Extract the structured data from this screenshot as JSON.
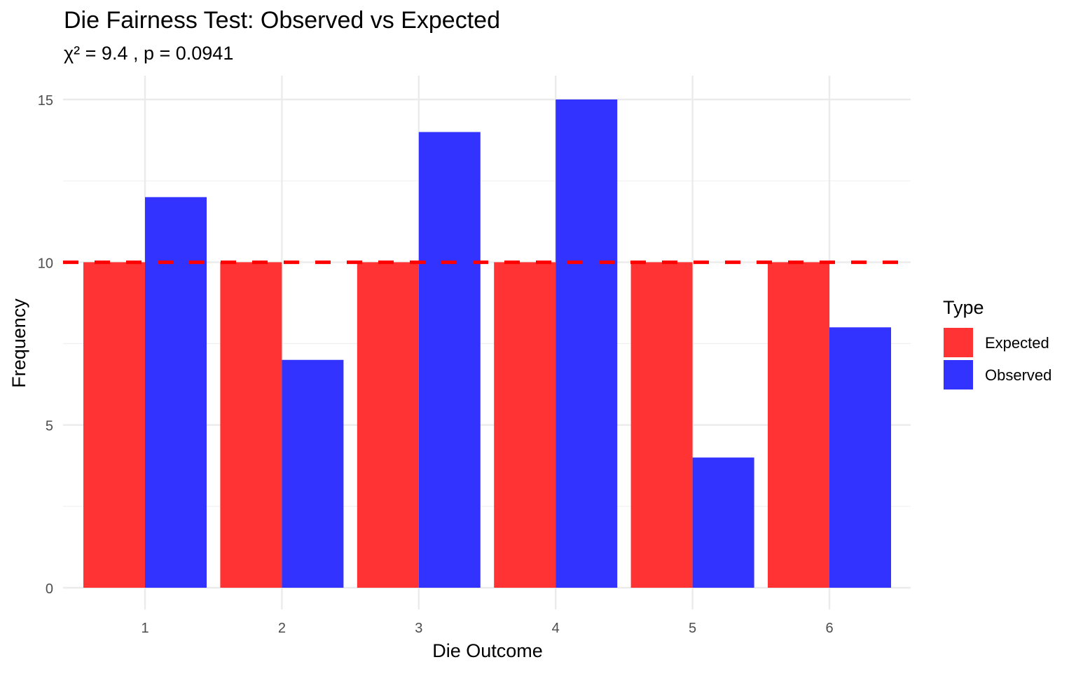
{
  "chart_data": {
    "type": "bar",
    "title": "Die Fairness Test: Observed vs Expected",
    "subtitle": "χ² = 9.4 , p = 0.0941",
    "xlabel": "Die Outcome",
    "ylabel": "Frequency",
    "categories": [
      "1",
      "2",
      "3",
      "4",
      "5",
      "6"
    ],
    "series": [
      {
        "name": "Expected",
        "values": [
          10,
          10,
          10,
          10,
          10,
          10
        ],
        "color": "#FF3333"
      },
      {
        "name": "Observed",
        "values": [
          12,
          7,
          14,
          15,
          4,
          8
        ],
        "color": "#3333FF"
      }
    ],
    "ylim": [
      0,
      15
    ],
    "yticks": [
      0,
      5,
      10,
      15
    ],
    "yticks_minor": [
      2.5,
      7.5,
      12.5
    ],
    "reference_line": {
      "value": 10,
      "style": "dashed",
      "color": "#FF0000"
    },
    "grid": true,
    "legend": {
      "title": "Type",
      "position": "right"
    }
  }
}
